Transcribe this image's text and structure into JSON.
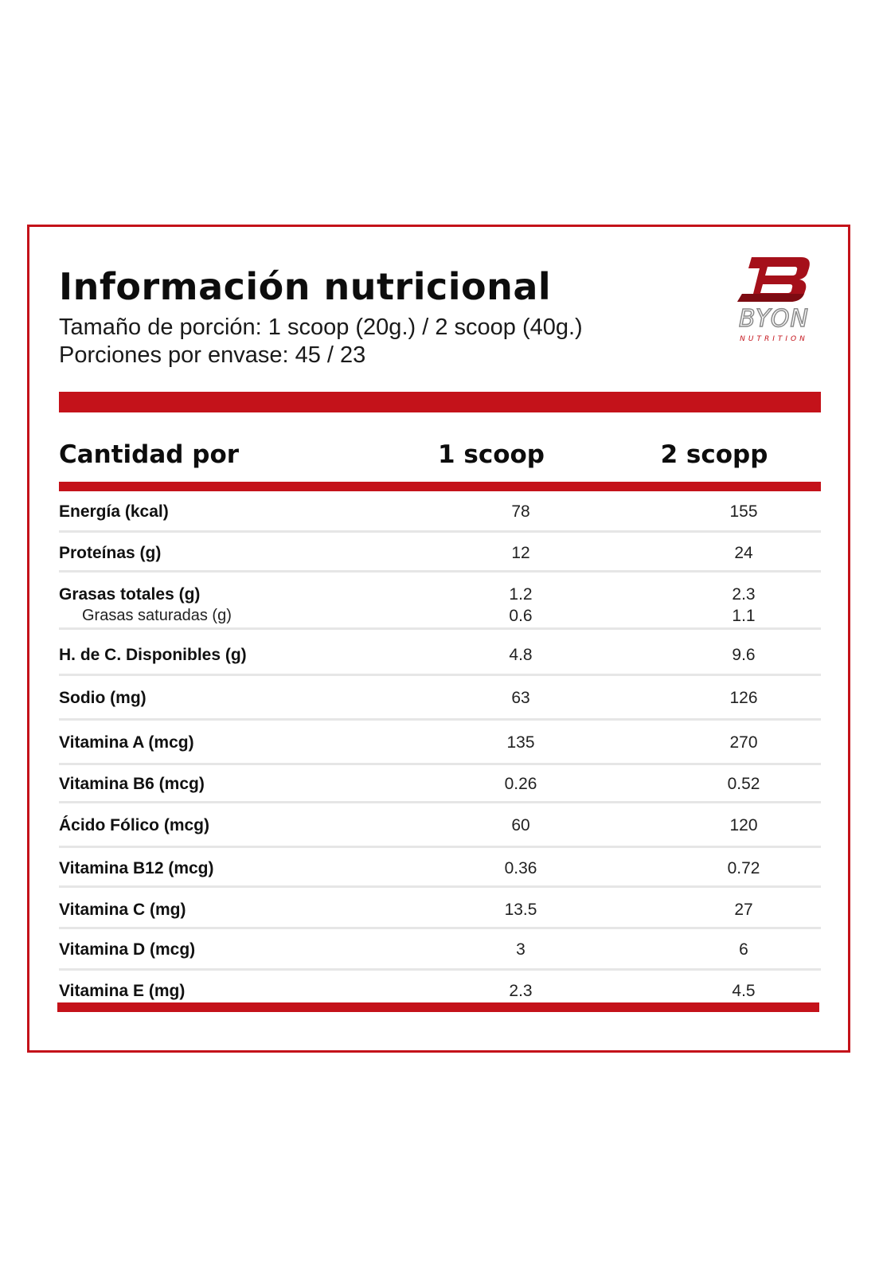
{
  "header": {
    "title": "Información nutricional",
    "serving_size": "Tamaño de porción: 1 scoop (20g.) / 2 scoop (40g.)",
    "servings_per_container": "Porciones por envase: 45 / 23"
  },
  "brand": {
    "logo_icon": "byon-b-logo-icon",
    "name": "BYON",
    "tagline": "NUTRITION",
    "accent_color": "#c4121a"
  },
  "table": {
    "columns": {
      "label": "Cantidad por",
      "col1": "1 scoop",
      "col2": "2 scopp"
    },
    "rows": [
      {
        "label": "Energía (kcal)",
        "col1": "78",
        "col2": "155"
      },
      {
        "label": "Proteínas (g)",
        "col1": "12",
        "col2": "24"
      },
      {
        "label": "Grasas totales (g)",
        "col1": "1.2",
        "col2": "2.3",
        "sub_label": "Grasas saturadas (g)",
        "sub_col1": "0.6",
        "sub_col2": "1.1"
      },
      {
        "label": "H. de C. Disponibles (g)",
        "col1": "4.8",
        "col2": "9.6"
      },
      {
        "label": "Sodio (mg)",
        "col1": "63",
        "col2": "126"
      },
      {
        "label": "Vitamina A (mcg)",
        "col1": "135",
        "col2": "270"
      },
      {
        "label": "Vitamina B6 (mcg)",
        "col1": "0.26",
        "col2": "0.52"
      },
      {
        "label": "Ácido Fólico (mcg)",
        "col1": "60",
        "col2": "120"
      },
      {
        "label": "Vitamina B12 (mcg)",
        "col1": "0.36",
        "col2": "0.72"
      },
      {
        "label": "Vitamina C (mg)",
        "col1": "13.5",
        "col2": "27"
      },
      {
        "label": "Vitamina D (mcg)",
        "col1": "3",
        "col2": "6"
      },
      {
        "label": "Vitamina E (mg)",
        "col1": "2.3",
        "col2": "4.5"
      }
    ]
  }
}
